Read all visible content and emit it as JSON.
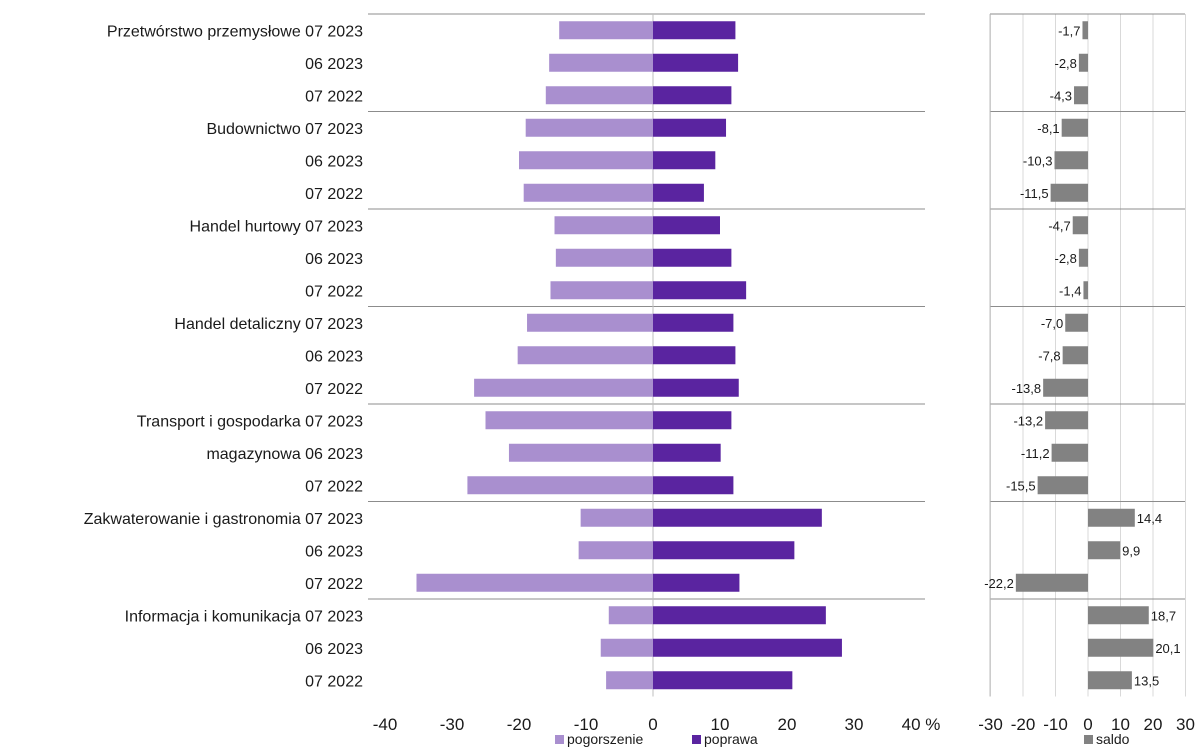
{
  "chart_data": [
    {
      "type": "bar",
      "orientation": "horizontal",
      "categories": [
        "Przetwórstwo przemysłowe 07 2023",
        "06 2023",
        "07 2022",
        "Budownictwo 07 2023",
        "06 2023",
        "07 2022",
        "Handel hurtowy 07 2023",
        "06 2023",
        "07 2022",
        "Handel detaliczny 07 2023",
        "06 2023",
        "07 2022",
        "Transport i gospodarka 07 2023",
        "magazynowa 06 2023",
        "07 2022",
        "Zakwaterowanie i gastronomia 07 2023",
        "06 2023",
        "07 2022",
        "Informacja i komunikacja 07 2023",
        "06 2023",
        "07 2022"
      ],
      "series": [
        {
          "name": "pogorszenie",
          "color": "#a98fcf",
          "values": [
            -14,
            -15.5,
            -16,
            -19,
            -20,
            -19.3,
            -14.7,
            -14.5,
            -15.3,
            -18.8,
            -20.2,
            -26.7,
            -25,
            -21.5,
            -27.7,
            -10.8,
            -11.1,
            -35.3,
            -6.6,
            -7.8,
            -7.0
          ]
        },
        {
          "name": "poprawa",
          "color": "#5a24a0",
          "values": [
            12.3,
            12.7,
            11.7,
            10.9,
            9.3,
            7.6,
            10.0,
            11.7,
            13.9,
            12.0,
            12.3,
            12.8,
            11.7,
            10.1,
            12.0,
            25.2,
            21.1,
            12.9,
            25.8,
            28.2,
            20.8
          ]
        }
      ],
      "xticks": [
        "-40",
        "-30",
        "-20",
        "-10",
        "0",
        "10",
        "20",
        "30",
        "40 %"
      ],
      "xlim": [
        -40,
        40
      ],
      "legend_position": "bottom"
    },
    {
      "type": "bar",
      "orientation": "horizontal",
      "series": [
        {
          "name": "saldo",
          "color": "#828282",
          "values": [
            -1.7,
            -2.8,
            -4.3,
            -8.1,
            -10.3,
            -11.5,
            -4.7,
            -2.8,
            -1.4,
            -7.0,
            -7.8,
            -13.8,
            -13.2,
            -11.2,
            -15.5,
            14.4,
            9.9,
            -22.2,
            18.7,
            20.1,
            13.5
          ],
          "labels": [
            "-1,7",
            "-2,8",
            "-4,3",
            "-8,1",
            "-10,3",
            "-11,5",
            "-4,7",
            "-2,8",
            "-1,4",
            "-7,0",
            "-7,8",
            "-13,8",
            "-13,2",
            "-11,2",
            "-15,5",
            "14,4",
            "9,9",
            "-22,2",
            "18,7",
            "20,1",
            "13,5"
          ]
        }
      ],
      "xticks": [
        "-30",
        "-20",
        "-10",
        "0",
        "10",
        "20",
        "30"
      ],
      "xlim": [
        -30,
        30
      ],
      "grid": true,
      "legend_position": "bottom"
    }
  ]
}
